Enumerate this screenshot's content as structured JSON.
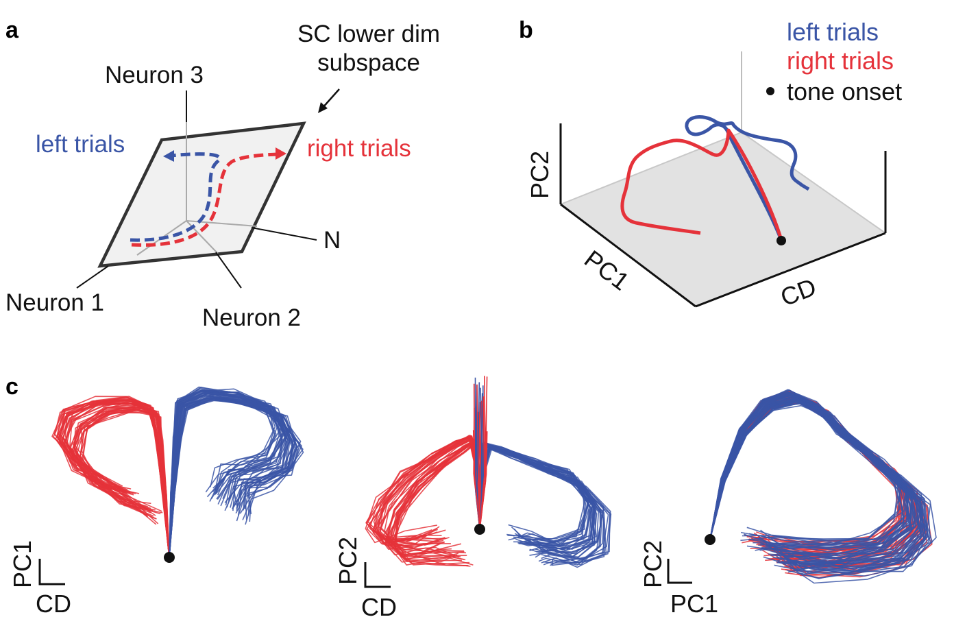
{
  "colors": {
    "left": "#3a55a6",
    "right": "#e5323a",
    "plane": "#efefef",
    "floor": "#e2e2e2",
    "axis": "#111111",
    "gray_axis": "#bdbdbd"
  },
  "panel_a": {
    "label": "a",
    "neuron3": "Neuron 3",
    "neuron1": "Neuron 1",
    "neuron2": "Neuron 2",
    "n_axis": "N",
    "subspace_line1": "SC lower dim",
    "subspace_line2": "subspace",
    "left_trials": "left trials",
    "right_trials": "right trials"
  },
  "panel_b": {
    "label": "b",
    "legend_left": "left trials",
    "legend_right": "right trials",
    "legend_dot_symbol": "•",
    "legend_onset": "tone onset",
    "axis_pc2": "PC2",
    "axis_pc1": "PC1",
    "axis_cd": "CD"
  },
  "panel_c": {
    "label": "c",
    "plots": [
      {
        "ylabel": "PC1",
        "xlabel": "CD"
      },
      {
        "ylabel": "PC2",
        "xlabel": "CD"
      },
      {
        "ylabel": "PC2",
        "xlabel": "PC1"
      }
    ]
  }
}
